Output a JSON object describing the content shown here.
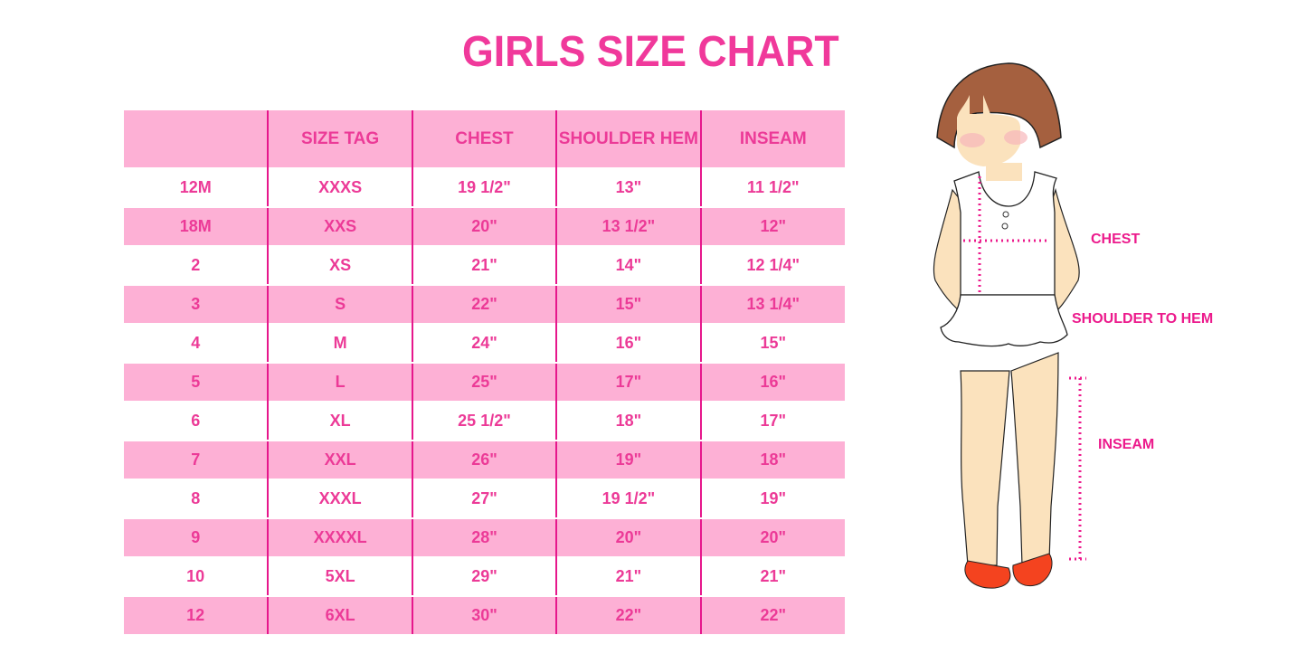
{
  "title": "GIRLS SIZE CHART",
  "colors": {
    "accent": "#ec3a97",
    "row_pink": "#fdb0d5",
    "divider": "#e6178c"
  },
  "table": {
    "headers": [
      "",
      "SIZE TAG",
      "CHEST",
      "SHOULDER HEM",
      "INSEAM"
    ],
    "rows": [
      [
        "12M",
        "XXXS",
        "19 1/2\"",
        "13\"",
        "11 1/2\""
      ],
      [
        "18M",
        "XXS",
        "20\"",
        "13 1/2\"",
        "12\""
      ],
      [
        "2",
        "XS",
        "21\"",
        "14\"",
        "12 1/4\""
      ],
      [
        "3",
        "S",
        "22\"",
        "15\"",
        "13 1/4\""
      ],
      [
        "4",
        "M",
        "24\"",
        "16\"",
        "15\""
      ],
      [
        "5",
        "L",
        "25\"",
        "17\"",
        "16\""
      ],
      [
        "6",
        "XL",
        "25 1/2\"",
        "18\"",
        "17\""
      ],
      [
        "7",
        "XXL",
        "26\"",
        "19\"",
        "18\""
      ],
      [
        "8",
        "XXXL",
        "27\"",
        "19 1/2\"",
        "19\""
      ],
      [
        "9",
        "XXXXL",
        "28\"",
        "20\"",
        "20\""
      ],
      [
        "10",
        "5XL",
        "29\"",
        "21\"",
        "21\""
      ],
      [
        "12",
        "6XL",
        "30\"",
        "22\"",
        "22\""
      ]
    ]
  },
  "figure": {
    "labels": {
      "chest": "CHEST",
      "shoulder": "SHOULDER TO HEM",
      "inseam": "INSEAM"
    }
  }
}
